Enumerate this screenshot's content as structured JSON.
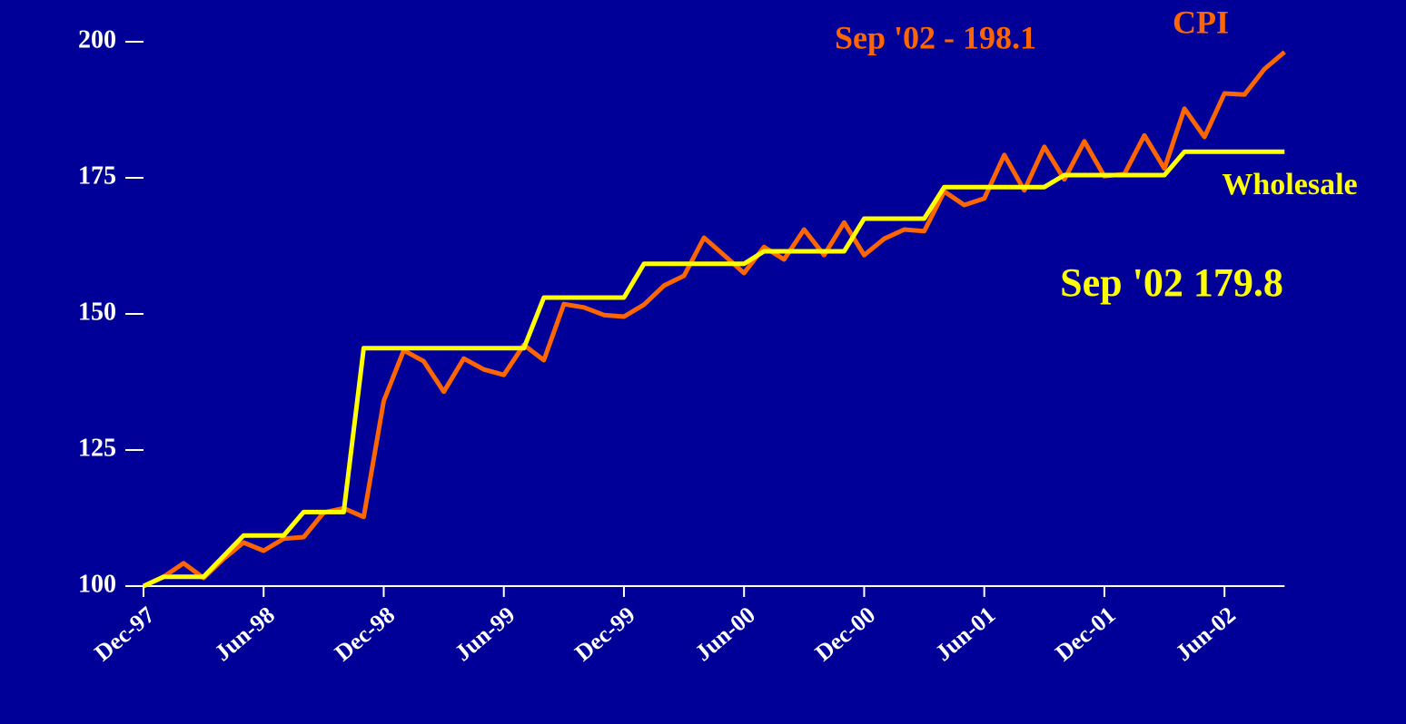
{
  "chart_data": {
    "type": "line",
    "categories": [
      "Dec-97",
      null,
      null,
      null,
      null,
      null,
      "Jun-98",
      null,
      null,
      null,
      null,
      null,
      "Dec-98",
      null,
      null,
      null,
      null,
      null,
      "Jun-99",
      null,
      null,
      null,
      null,
      null,
      "Dec-99",
      null,
      null,
      null,
      null,
      null,
      "Jun-00",
      null,
      null,
      null,
      null,
      null,
      "Dec-00",
      null,
      null,
      null,
      null,
      null,
      "Jun-01",
      null,
      null,
      null,
      null,
      null,
      "Dec-01",
      null,
      null,
      null,
      null,
      null,
      "Jun-02",
      null,
      null,
      null
    ],
    "series": [
      {
        "name": "CPI",
        "color": "#ff6600",
        "values": [
          100,
          101.7,
          104.2,
          101.5,
          105,
          108,
          106.5,
          108.7,
          109,
          113.5,
          114.3,
          112.7,
          134,
          143.3,
          141.3,
          135.7,
          141.8,
          139.8,
          138.8,
          144.3,
          141.5,
          151.8,
          151.2,
          149.8,
          149.5,
          151.7,
          155.2,
          157,
          164,
          160.8,
          157.5,
          162.3,
          160,
          165.5,
          160.8,
          166.8,
          160.8,
          163.8,
          165.5,
          165.2,
          172.5,
          170,
          171.2,
          179.2,
          172.7,
          180.7,
          174.7,
          181.7,
          175.3,
          175.7,
          182.8,
          176.7,
          187.7,
          182.5,
          190.5,
          190.3,
          195,
          198.1
        ]
      },
      {
        "name": "Wholesale",
        "color": "#ffff00",
        "values": [
          100,
          101.7,
          101.7,
          101.7,
          105.5,
          109.3,
          109.3,
          109.3,
          113.6,
          113.6,
          113.6,
          143.7,
          143.7,
          143.7,
          143.7,
          143.7,
          143.7,
          143.7,
          143.7,
          143.7,
          153,
          153,
          153,
          153,
          153,
          159.2,
          159.2,
          159.2,
          159.2,
          159.2,
          159.2,
          161.5,
          161.5,
          161.5,
          161.5,
          161.5,
          167.5,
          167.5,
          167.5,
          167.5,
          173.3,
          173.3,
          173.3,
          173.3,
          173.3,
          173.3,
          175.5,
          175.5,
          175.5,
          175.5,
          175.5,
          175.5,
          179.8,
          179.8,
          179.8,
          179.8,
          179.8,
          179.8
        ]
      }
    ],
    "ylim": [
      100,
      200
    ],
    "yticks": [
      100,
      125,
      150,
      175,
      200
    ],
    "annotations": [
      "Sep '02 - 198.1",
      "Sep '02 179.8"
    ]
  }
}
